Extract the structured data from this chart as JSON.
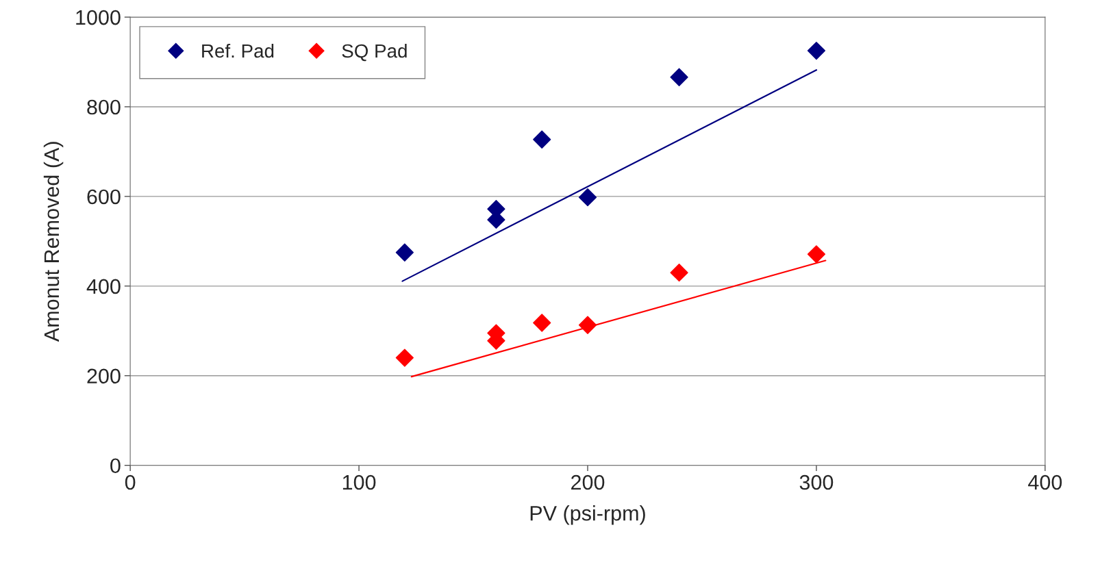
{
  "chart_data": {
    "type": "scatter",
    "xlabel": "PV (psi-rpm)",
    "ylabel": "Amonut Removed (A)",
    "xlim": [
      0,
      400
    ],
    "ylim": [
      0,
      1000
    ],
    "xticks": [
      0,
      100,
      200,
      300,
      400
    ],
    "yticks": [
      0,
      200,
      400,
      600,
      800,
      1000
    ],
    "grid": "y",
    "legend": "top left",
    "marker": "diamond",
    "series": [
      {
        "name": "Ref. Pad",
        "color": "#000080",
        "x": [
          120,
          160,
          160,
          180,
          200,
          240,
          300
        ],
        "values": [
          475,
          572,
          548,
          727,
          598,
          866,
          925
        ]
      },
      {
        "name": "SQ Pad",
        "color": "#ff0000",
        "x": [
          120,
          160,
          160,
          180,
          200,
          240,
          300
        ],
        "values": [
          240,
          295,
          278,
          318,
          313,
          430,
          471
        ]
      },
      {
        "type": "line",
        "color": "#000080",
        "x": [
          119,
          300
        ],
        "values": [
          411,
          882
        ],
        "marker": "none"
      },
      {
        "type": "line",
        "color": "#ff0000",
        "x": [
          123,
          304
        ],
        "values": [
          198,
          457
        ],
        "marker": "none"
      }
    ]
  }
}
